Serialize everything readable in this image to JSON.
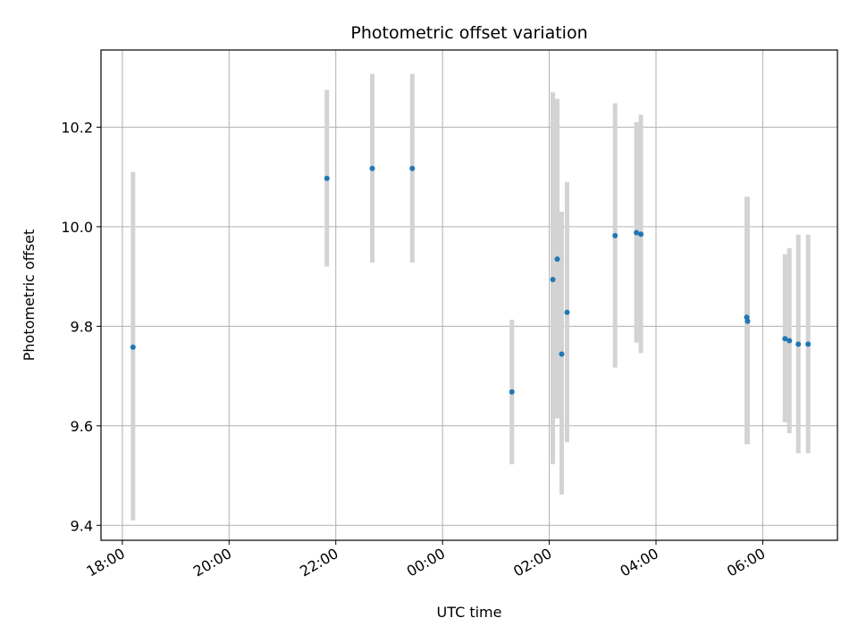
{
  "chart_data": {
    "type": "scatter",
    "title": "Photometric offset variation",
    "xlabel": "UTC time",
    "ylabel": "Photometric offset",
    "x_axis_type": "time",
    "x_range": [
      "17:36",
      "07:24"
    ],
    "x_ticks": [
      "18:00",
      "20:00",
      "22:00",
      "00:00",
      "02:00",
      "04:00",
      "06:00"
    ],
    "y_range": [
      9.37,
      10.355
    ],
    "y_ticks": [
      "9.4",
      "9.6",
      "9.8",
      "10.0",
      "10.2"
    ],
    "grid": true,
    "colors": {
      "points": "#1f77b4",
      "error_bars": "#d3d3d3",
      "grid": "#b0b0b0"
    },
    "series": [
      {
        "points": [
          {
            "time": "18:12",
            "y": 9.758,
            "ylow": 9.41,
            "yhigh": 10.11
          },
          {
            "time": "21:50",
            "y": 10.097,
            "ylow": 9.92,
            "yhigh": 10.275
          },
          {
            "time": "22:41",
            "y": 10.117,
            "ylow": 9.928,
            "yhigh": 10.307
          },
          {
            "time": "23:26",
            "y": 10.117,
            "ylow": 9.928,
            "yhigh": 10.307
          },
          {
            "time": "01:18",
            "y": 9.668,
            "ylow": 9.523,
            "yhigh": 9.813
          },
          {
            "time": "02:04",
            "y": 9.894,
            "ylow": 9.523,
            "yhigh": 10.27
          },
          {
            "time": "02:09",
            "y": 9.935,
            "ylow": 9.615,
            "yhigh": 10.257
          },
          {
            "time": "02:14",
            "y": 9.744,
            "ylow": 9.462,
            "yhigh": 10.03
          },
          {
            "time": "02:20",
            "y": 9.828,
            "ylow": 9.567,
            "yhigh": 10.09
          },
          {
            "time": "03:14",
            "y": 9.982,
            "ylow": 9.717,
            "yhigh": 10.248
          },
          {
            "time": "03:38",
            "y": 9.988,
            "ylow": 9.767,
            "yhigh": 10.21
          },
          {
            "time": "03:43",
            "y": 9.985,
            "ylow": 9.746,
            "yhigh": 10.225
          },
          {
            "time": "05:42",
            "y": 9.818,
            "ylow": 9.563,
            "yhigh": 10.06
          },
          {
            "time": "05:43",
            "y": 9.81,
            "ylow": 9.563,
            "yhigh": 10.06
          },
          {
            "time": "06:25",
            "y": 9.775,
            "ylow": 9.607,
            "yhigh": 9.945
          },
          {
            "time": "06:30",
            "y": 9.771,
            "ylow": 9.585,
            "yhigh": 9.957
          },
          {
            "time": "06:40",
            "y": 9.764,
            "ylow": 9.545,
            "yhigh": 9.984
          },
          {
            "time": "06:51",
            "y": 9.764,
            "ylow": 9.545,
            "yhigh": 9.984
          }
        ]
      }
    ]
  }
}
